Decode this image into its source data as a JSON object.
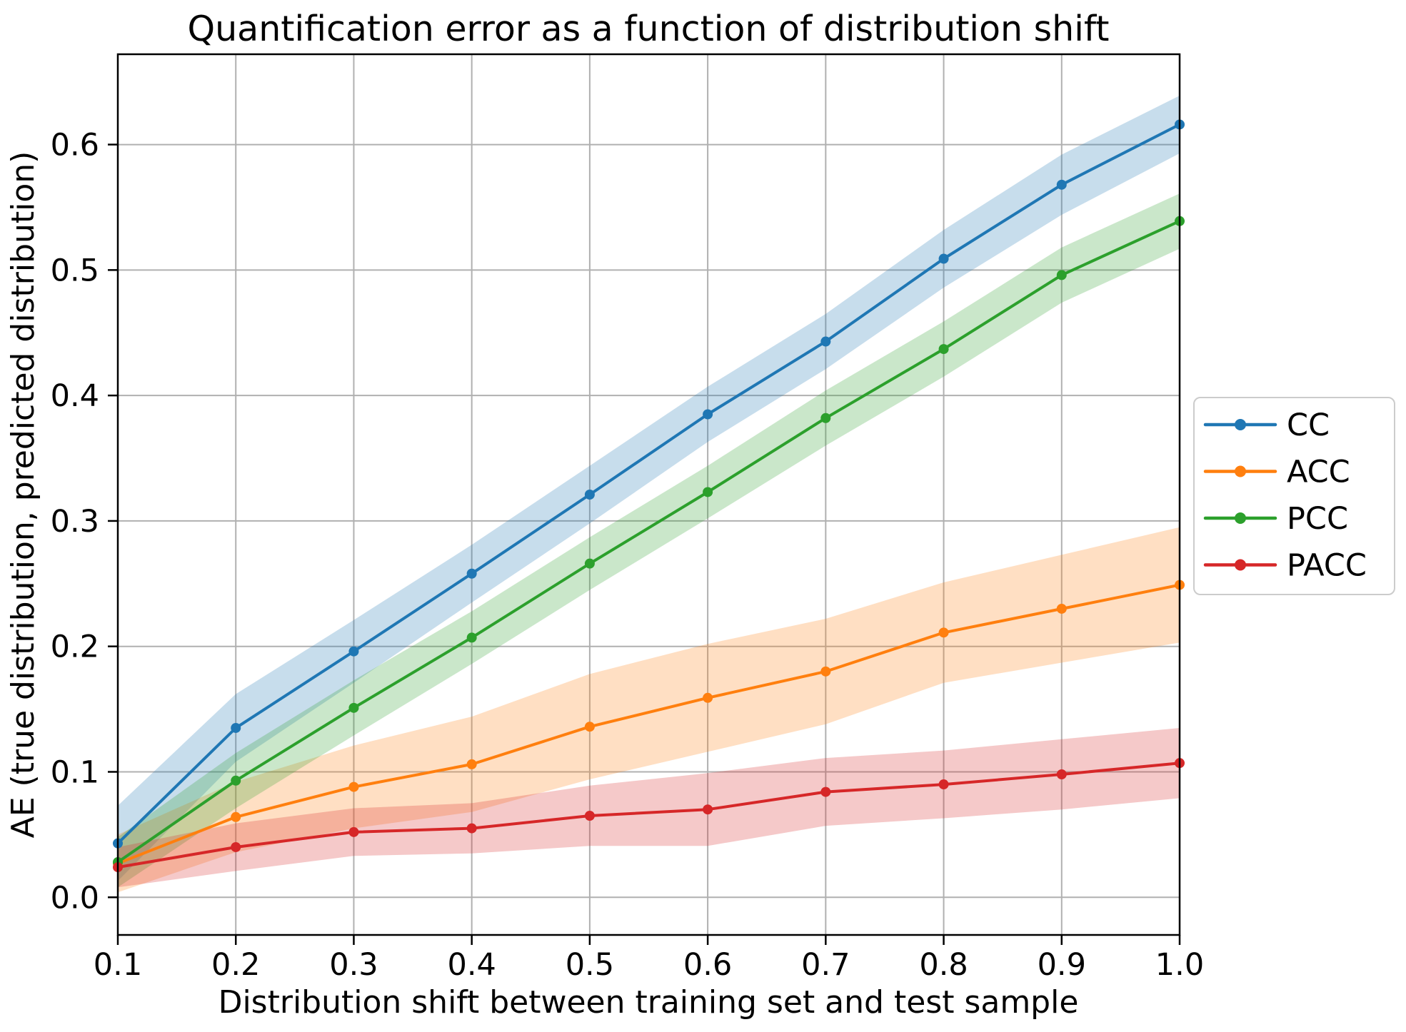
{
  "figure": {
    "background": "#ffffff",
    "grid_color": "#b0b0b0",
    "spine_color": "#000000",
    "tick_color": "#000000",
    "legend": {
      "border_color": "#cccccc",
      "background": "#ffffff",
      "position": "right of axes, vertically centered"
    }
  },
  "chart_data": {
    "type": "line",
    "title": "Quantification error as a function of distribution shift",
    "xlabel": "Distribution shift between training set and test sample",
    "ylabel": "AE (true distribution, predicted distribution)",
    "x": [
      0.1,
      0.2,
      0.3,
      0.4,
      0.5,
      0.6,
      0.7,
      0.8,
      0.9,
      1.0
    ],
    "xtick_labels": [
      "0.1",
      "0.2",
      "0.3",
      "0.4",
      "0.5",
      "0.6",
      "0.7",
      "0.8",
      "0.9",
      "1.0"
    ],
    "yticks": [
      0.0,
      0.1,
      0.2,
      0.3,
      0.4,
      0.5,
      0.6
    ],
    "ytick_labels": [
      "0.0",
      "0.1",
      "0.2",
      "0.3",
      "0.4",
      "0.5",
      "0.6"
    ],
    "xlim": [
      0.1,
      1.0
    ],
    "ylim": [
      -0.03,
      0.672
    ],
    "grid": true,
    "band_alpha": 0.25,
    "marker": "point",
    "legend_entries": [
      "CC",
      "ACC",
      "PCC",
      "PACC"
    ],
    "series": [
      {
        "name": "CC",
        "color": "#1f77b4",
        "values": [
          0.043,
          0.135,
          0.196,
          0.258,
          0.321,
          0.385,
          0.443,
          0.509,
          0.568,
          0.616
        ],
        "band_halfwidth": [
          0.03,
          0.027,
          0.025,
          0.023,
          0.023,
          0.022,
          0.022,
          0.023,
          0.024,
          0.023
        ]
      },
      {
        "name": "ACC",
        "color": "#ff7f0e",
        "values": [
          0.027,
          0.064,
          0.088,
          0.106,
          0.136,
          0.159,
          0.18,
          0.211,
          0.23,
          0.249
        ],
        "band_halfwidth": [
          0.023,
          0.028,
          0.033,
          0.038,
          0.042,
          0.043,
          0.042,
          0.04,
          0.043,
          0.046
        ]
      },
      {
        "name": "PCC",
        "color": "#2ca02c",
        "values": [
          0.028,
          0.093,
          0.151,
          0.207,
          0.266,
          0.323,
          0.382,
          0.437,
          0.496,
          0.539
        ],
        "band_halfwidth": [
          0.02,
          0.022,
          0.022,
          0.021,
          0.021,
          0.021,
          0.022,
          0.022,
          0.022,
          0.022
        ]
      },
      {
        "name": "PACC",
        "color": "#d62728",
        "values": [
          0.024,
          0.04,
          0.052,
          0.055,
          0.065,
          0.07,
          0.084,
          0.09,
          0.098,
          0.107
        ],
        "band_halfwidth": [
          0.016,
          0.019,
          0.019,
          0.02,
          0.024,
          0.029,
          0.027,
          0.027,
          0.028,
          0.028
        ]
      }
    ]
  }
}
